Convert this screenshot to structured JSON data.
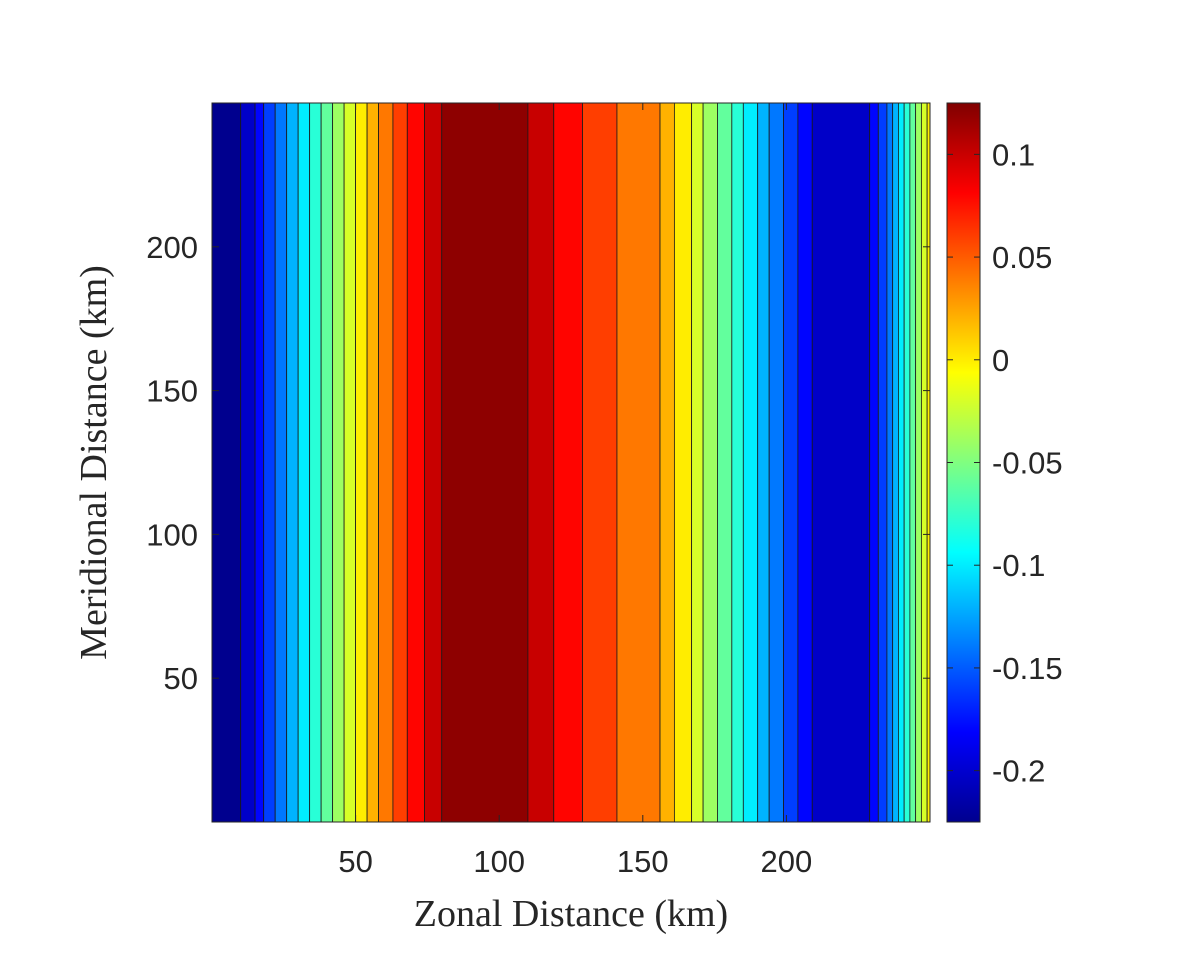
{
  "chart_data": {
    "type": "contour",
    "xlabel": "Zonal Distance (km)",
    "ylabel": "Meridional Distance (km)",
    "xlim": [
      0,
      250
    ],
    "ylim": [
      0,
      250
    ],
    "x_ticks": [
      50,
      100,
      150,
      200
    ],
    "y_ticks": [
      50,
      100,
      150,
      200
    ],
    "colormap": "jet",
    "colorbar": {
      "range": [
        -0.225,
        0.125
      ],
      "ticks": [
        -0.2,
        -0.15,
        -0.1,
        -0.05,
        0,
        0.05,
        0.1
      ],
      "tick_labels": [
        "-0.2",
        "-0.15",
        "-0.1",
        "-0.05",
        "0",
        "0.05",
        "0.1"
      ]
    },
    "bands": [
      {
        "x0": 0,
        "x1": 10,
        "value": -0.22
      },
      {
        "x0": 10,
        "x1": 15,
        "value": -0.2
      },
      {
        "x0": 15,
        "x1": 18,
        "value": -0.18
      },
      {
        "x0": 18,
        "x1": 22,
        "value": -0.16
      },
      {
        "x0": 22,
        "x1": 26,
        "value": -0.14
      },
      {
        "x0": 26,
        "x1": 30,
        "value": -0.12
      },
      {
        "x0": 30,
        "x1": 34,
        "value": -0.1
      },
      {
        "x0": 34,
        "x1": 38,
        "value": -0.08
      },
      {
        "x0": 38,
        "x1": 42,
        "value": -0.06
      },
      {
        "x0": 42,
        "x1": 46,
        "value": -0.04
      },
      {
        "x0": 46,
        "x1": 50,
        "value": -0.02
      },
      {
        "x0": 50,
        "x1": 54,
        "value": 0.0
      },
      {
        "x0": 54,
        "x1": 58,
        "value": 0.02
      },
      {
        "x0": 58,
        "x1": 63,
        "value": 0.04
      },
      {
        "x0": 63,
        "x1": 68,
        "value": 0.06
      },
      {
        "x0": 68,
        "x1": 74,
        "value": 0.08
      },
      {
        "x0": 74,
        "x1": 80,
        "value": 0.1
      },
      {
        "x0": 80,
        "x1": 110,
        "value": 0.12
      },
      {
        "x0": 110,
        "x1": 119,
        "value": 0.1
      },
      {
        "x0": 119,
        "x1": 129,
        "value": 0.08
      },
      {
        "x0": 129,
        "x1": 141,
        "value": 0.06
      },
      {
        "x0": 141,
        "x1": 156,
        "value": 0.04
      },
      {
        "x0": 156,
        "x1": 161,
        "value": 0.02
      },
      {
        "x0": 161,
        "x1": 167,
        "value": 0.0
      },
      {
        "x0": 167,
        "x1": 171,
        "value": -0.02
      },
      {
        "x0": 171,
        "x1": 176,
        "value": -0.04
      },
      {
        "x0": 176,
        "x1": 181,
        "value": -0.06
      },
      {
        "x0": 181,
        "x1": 185,
        "value": -0.08
      },
      {
        "x0": 185,
        "x1": 190,
        "value": -0.1
      },
      {
        "x0": 190,
        "x1": 194,
        "value": -0.12
      },
      {
        "x0": 194,
        "x1": 199,
        "value": -0.14
      },
      {
        "x0": 199,
        "x1": 204,
        "value": -0.16
      },
      {
        "x0": 204,
        "x1": 209,
        "value": -0.18
      },
      {
        "x0": 209,
        "x1": 229,
        "value": -0.2
      },
      {
        "x0": 229,
        "x1": 232,
        "value": -0.18
      },
      {
        "x0": 232,
        "x1": 235,
        "value": -0.16
      },
      {
        "x0": 235,
        "x1": 237,
        "value": -0.14
      },
      {
        "x0": 237,
        "x1": 239,
        "value": -0.12
      },
      {
        "x0": 239,
        "x1": 241,
        "value": -0.1
      },
      {
        "x0": 241,
        "x1": 243,
        "value": -0.08
      },
      {
        "x0": 243,
        "x1": 245,
        "value": -0.06
      },
      {
        "x0": 245,
        "x1": 247,
        "value": -0.04
      },
      {
        "x0": 247,
        "x1": 249,
        "value": -0.02
      },
      {
        "x0": 249,
        "x1": 250,
        "value": 0.0
      }
    ]
  }
}
